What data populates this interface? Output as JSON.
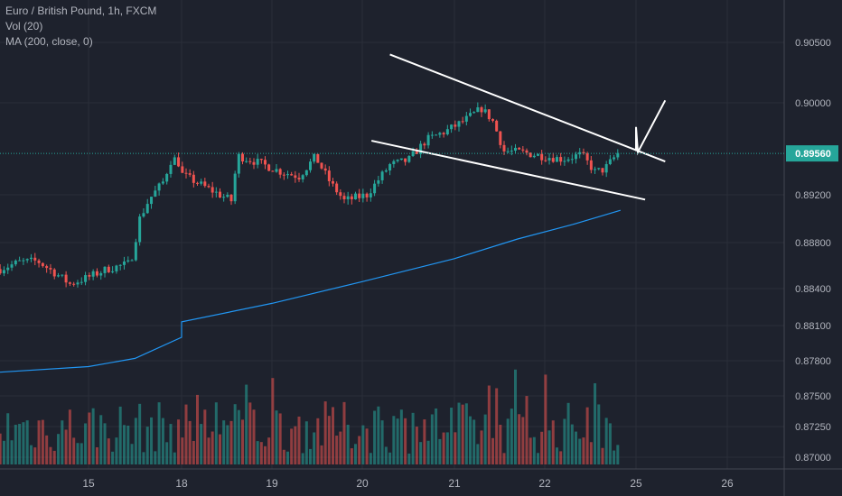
{
  "legend": {
    "symbol": "Euro / British Pound, 1h, FXCM",
    "volume": "Vol (20)",
    "ma": "MA (200, close, 0)"
  },
  "colors": {
    "background": "#1e222d",
    "grid": "#2a2e39",
    "up": "#26a69a",
    "down": "#ef5350",
    "up_volume": "#26a69a",
    "down_volume": "#ef5350",
    "ma_line": "#2196f3",
    "last_price_line": "#26a69a",
    "drawing": "#ffffff",
    "axis_text": "#b2b5be"
  },
  "chart_data": {
    "type": "candlestick",
    "title": "Euro / British Pound, 1h, FXCM",
    "price_axis": {
      "ticks": [
        "0.90500",
        "0.90000",
        "0.89200",
        "0.88800",
        "0.88400",
        "0.88100",
        "0.87800",
        "0.87500",
        "0.87250",
        "0.87000"
      ],
      "ylim": [
        0.8695,
        0.9078
      ]
    },
    "x_axis": {
      "ticks": [
        "15",
        "18",
        "19",
        "20",
        "21",
        "22",
        "25",
        "26"
      ],
      "xlim_days": [
        14.05,
        26.3
      ]
    },
    "last_price": "0.89560",
    "ohlc_anchors": [
      {
        "t": 14.05,
        "p": 0.8857
      },
      {
        "t": 14.25,
        "p": 0.8863
      },
      {
        "t": 14.45,
        "p": 0.8864
      },
      {
        "t": 14.65,
        "p": 0.8853
      },
      {
        "t": 14.8,
        "p": 0.8844
      },
      {
        "t": 15.0,
        "p": 0.885
      },
      {
        "t": 15.2,
        "p": 0.8857
      },
      {
        "t": 15.45,
        "p": 0.8862
      },
      {
        "t": 15.55,
        "p": 0.89
      },
      {
        "t": 15.65,
        "p": 0.8916
      },
      {
        "t": 15.8,
        "p": 0.8931
      },
      {
        "t": 15.9,
        "p": 0.8953
      },
      {
        "t": 16.0,
        "p": 0.8945
      },
      {
        "t": 18.0,
        "p": 0.8938
      },
      {
        "t": 18.3,
        "p": 0.8925
      },
      {
        "t": 18.55,
        "p": 0.8915
      },
      {
        "t": 18.62,
        "p": 0.8954
      },
      {
        "t": 18.85,
        "p": 0.8948
      },
      {
        "t": 19.1,
        "p": 0.894
      },
      {
        "t": 19.3,
        "p": 0.8936
      },
      {
        "t": 19.48,
        "p": 0.8953
      },
      {
        "t": 19.65,
        "p": 0.893
      },
      {
        "t": 19.8,
        "p": 0.8915
      },
      {
        "t": 20.05,
        "p": 0.892
      },
      {
        "t": 20.3,
        "p": 0.8946
      },
      {
        "t": 20.5,
        "p": 0.895
      },
      {
        "t": 20.7,
        "p": 0.8968
      },
      {
        "t": 20.9,
        "p": 0.8975
      },
      {
        "t": 21.1,
        "p": 0.8984
      },
      {
        "t": 21.3,
        "p": 0.8995
      },
      {
        "t": 21.42,
        "p": 0.8985
      },
      {
        "t": 21.55,
        "p": 0.8958
      },
      {
        "t": 21.75,
        "p": 0.8957
      },
      {
        "t": 21.95,
        "p": 0.8954
      },
      {
        "t": 22.2,
        "p": 0.8951
      },
      {
        "t": 22.4,
        "p": 0.8955
      },
      {
        "t": 22.55,
        "p": 0.894
      },
      {
        "t": 22.65,
        "p": 0.8942
      },
      {
        "t": 22.8,
        "p": 0.8956
      }
    ],
    "moving_average": [
      {
        "t": 14.0,
        "p": 0.877
      },
      {
        "t": 15.0,
        "p": 0.8775
      },
      {
        "t": 15.5,
        "p": 0.8782
      },
      {
        "t": 16.0,
        "p": 0.88
      },
      {
        "t": 18.0,
        "p": 0.8813
      },
      {
        "t": 19.0,
        "p": 0.8828
      },
      {
        "t": 20.0,
        "p": 0.8846
      },
      {
        "t": 21.0,
        "p": 0.8866
      },
      {
        "t": 21.7,
        "p": 0.8883
      },
      {
        "t": 22.3,
        "p": 0.8895
      },
      {
        "t": 22.83,
        "p": 0.8907
      }
    ],
    "drawings": {
      "upper_trendline": [
        {
          "t": 20.3,
          "p": 0.904
        },
        {
          "t": 25.32,
          "p": 0.8949
        }
      ],
      "lower_trendline": [
        {
          "t": 20.1,
          "p": 0.8967
        },
        {
          "t": 25.1,
          "p": 0.8916
        }
      ],
      "projection": [
        {
          "t": 24.85,
          "p": 0.8958
        },
        {
          "t": 24.98,
          "p": 0.8979
        },
        {
          "t": 25.02,
          "p": 0.8957
        },
        {
          "t": 25.32,
          "p": 0.9002
        }
      ]
    }
  }
}
